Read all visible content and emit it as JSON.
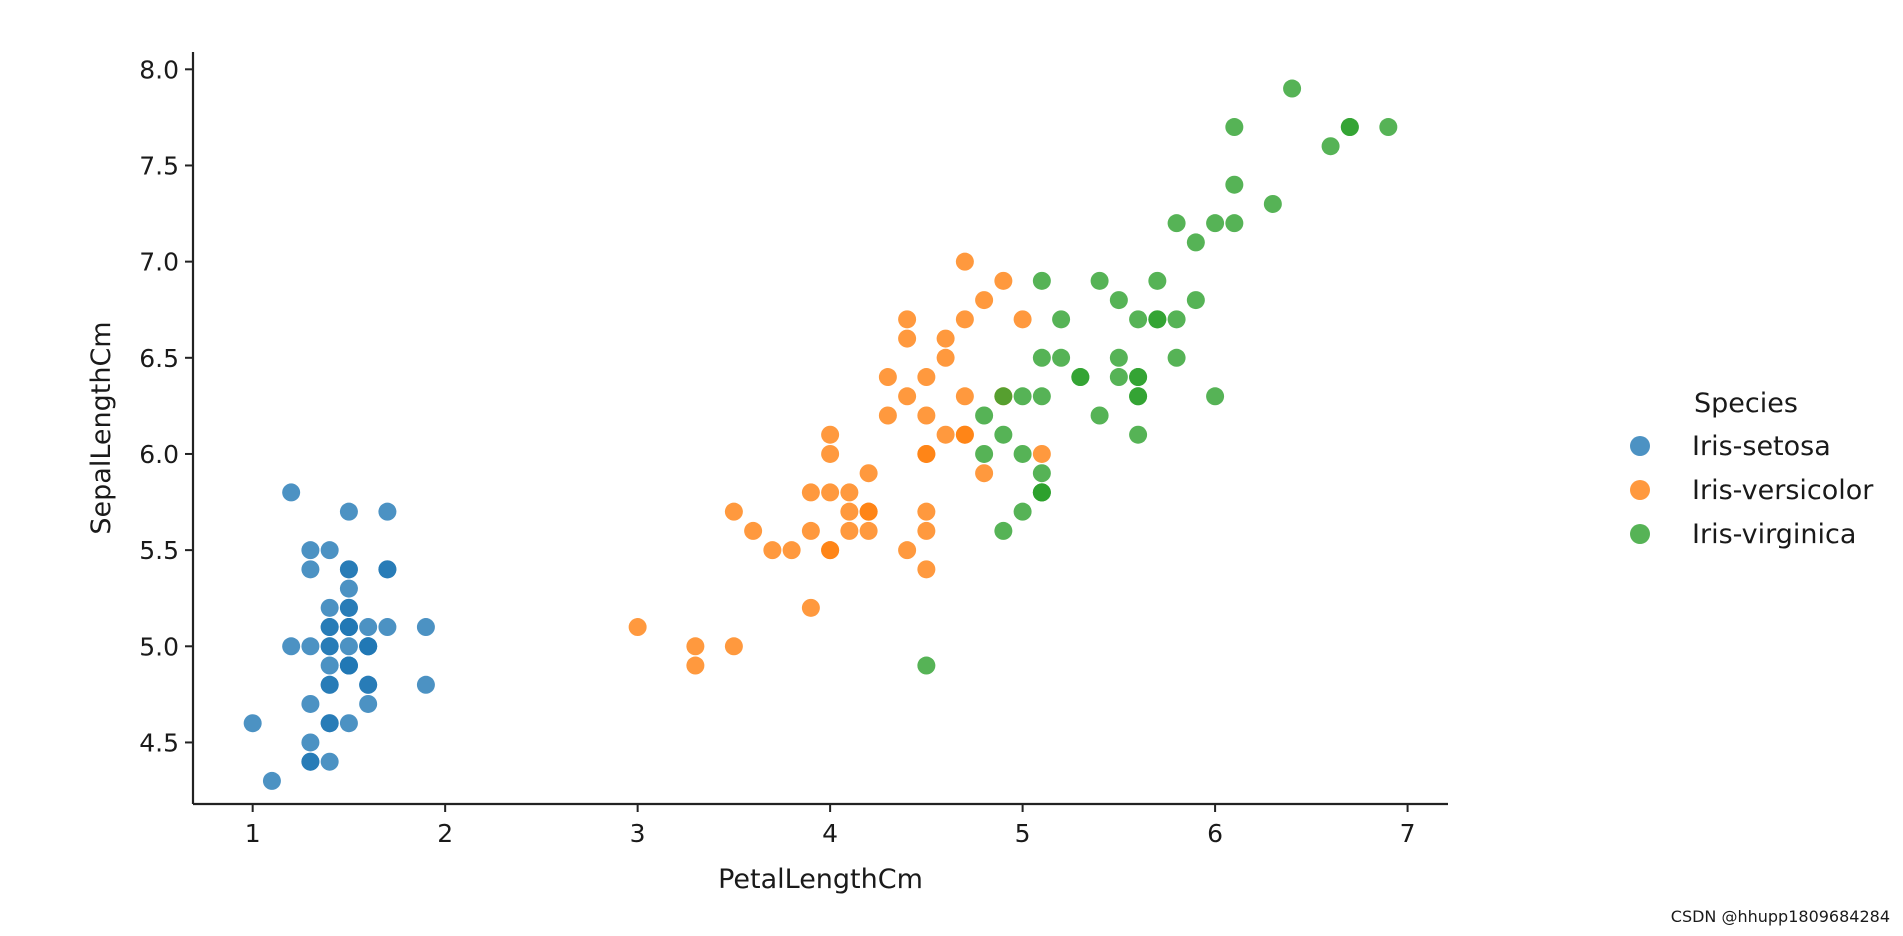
{
  "chart_data": {
    "type": "scatter",
    "xlabel": "PetalLengthCm",
    "ylabel": "SepalLengthCm",
    "xlim": [
      0.69,
      7.21
    ],
    "ylim": [
      4.18,
      8.09
    ],
    "x_ticks": [
      1,
      2,
      3,
      4,
      5,
      6,
      7
    ],
    "x_tick_labels": [
      "1",
      "2",
      "3",
      "4",
      "5",
      "6",
      "7"
    ],
    "y_ticks": [
      4.5,
      5.0,
      5.5,
      6.0,
      6.5,
      7.0,
      7.5,
      8.0
    ],
    "y_tick_labels": [
      "4.5",
      "5.0",
      "5.5",
      "6.0",
      "6.5",
      "7.0",
      "7.5",
      "8.0"
    ],
    "grid": false,
    "legend_title": "Species",
    "legend_position": "outside-right",
    "series": [
      {
        "name": "Iris-setosa",
        "color": "#1f77b4",
        "points": [
          [
            1.4,
            5.1
          ],
          [
            1.4,
            4.9
          ],
          [
            1.3,
            4.7
          ],
          [
            1.5,
            4.6
          ],
          [
            1.4,
            5.0
          ],
          [
            1.7,
            5.4
          ],
          [
            1.4,
            4.6
          ],
          [
            1.5,
            5.0
          ],
          [
            1.4,
            4.4
          ],
          [
            1.5,
            4.9
          ],
          [
            1.5,
            5.4
          ],
          [
            1.6,
            4.8
          ],
          [
            1.4,
            4.8
          ],
          [
            1.1,
            4.3
          ],
          [
            1.2,
            5.8
          ],
          [
            1.5,
            5.7
          ],
          [
            1.3,
            5.4
          ],
          [
            1.4,
            5.1
          ],
          [
            1.7,
            5.7
          ],
          [
            1.5,
            5.1
          ],
          [
            1.7,
            5.4
          ],
          [
            1.5,
            5.1
          ],
          [
            1.0,
            4.6
          ],
          [
            1.7,
            5.1
          ],
          [
            1.9,
            4.8
          ],
          [
            1.6,
            5.0
          ],
          [
            1.6,
            5.0
          ],
          [
            1.5,
            5.2
          ],
          [
            1.4,
            5.2
          ],
          [
            1.6,
            4.7
          ],
          [
            1.6,
            4.8
          ],
          [
            1.5,
            5.4
          ],
          [
            1.5,
            5.2
          ],
          [
            1.4,
            5.5
          ],
          [
            1.5,
            4.9
          ],
          [
            1.2,
            5.0
          ],
          [
            1.3,
            5.5
          ],
          [
            1.5,
            4.9
          ],
          [
            1.3,
            4.4
          ],
          [
            1.5,
            5.1
          ],
          [
            1.3,
            5.0
          ],
          [
            1.3,
            4.5
          ],
          [
            1.3,
            4.4
          ],
          [
            1.6,
            5.0
          ],
          [
            1.9,
            5.1
          ],
          [
            1.4,
            4.8
          ],
          [
            1.6,
            5.1
          ],
          [
            1.4,
            4.6
          ],
          [
            1.5,
            5.3
          ],
          [
            1.4,
            5.0
          ]
        ]
      },
      {
        "name": "Iris-versicolor",
        "color": "#ff7f0e",
        "points": [
          [
            4.7,
            7.0
          ],
          [
            4.5,
            6.4
          ],
          [
            4.9,
            6.9
          ],
          [
            4.0,
            5.5
          ],
          [
            4.6,
            6.5
          ],
          [
            4.5,
            5.7
          ],
          [
            4.7,
            6.3
          ],
          [
            3.3,
            4.9
          ],
          [
            4.6,
            6.6
          ],
          [
            3.9,
            5.2
          ],
          [
            3.5,
            5.0
          ],
          [
            4.2,
            5.9
          ],
          [
            4.0,
            6.0
          ],
          [
            4.7,
            6.1
          ],
          [
            3.6,
            5.6
          ],
          [
            4.4,
            6.7
          ],
          [
            4.5,
            5.6
          ],
          [
            4.1,
            5.8
          ],
          [
            4.5,
            6.2
          ],
          [
            3.9,
            5.6
          ],
          [
            4.8,
            5.9
          ],
          [
            4.0,
            6.1
          ],
          [
            4.9,
            6.3
          ],
          [
            4.7,
            6.1
          ],
          [
            4.3,
            6.4
          ],
          [
            4.4,
            6.6
          ],
          [
            4.8,
            6.8
          ],
          [
            5.0,
            6.7
          ],
          [
            4.5,
            6.0
          ],
          [
            3.5,
            5.7
          ],
          [
            3.8,
            5.5
          ],
          [
            3.7,
            5.5
          ],
          [
            3.9,
            5.8
          ],
          [
            5.1,
            6.0
          ],
          [
            4.5,
            5.4
          ],
          [
            4.5,
            6.0
          ],
          [
            4.7,
            6.7
          ],
          [
            4.4,
            6.3
          ],
          [
            4.1,
            5.6
          ],
          [
            4.0,
            5.5
          ],
          [
            4.4,
            5.5
          ],
          [
            4.6,
            6.1
          ],
          [
            4.0,
            5.8
          ],
          [
            3.3,
            5.0
          ],
          [
            4.2,
            5.6
          ],
          [
            4.2,
            5.7
          ],
          [
            4.2,
            5.7
          ],
          [
            4.3,
            6.2
          ],
          [
            3.0,
            5.1
          ],
          [
            4.1,
            5.7
          ]
        ]
      },
      {
        "name": "Iris-virginica",
        "color": "#2ca02c",
        "points": [
          [
            6.0,
            6.3
          ],
          [
            5.1,
            5.8
          ],
          [
            5.9,
            7.1
          ],
          [
            5.6,
            6.3
          ],
          [
            5.8,
            6.5
          ],
          [
            6.6,
            7.6
          ],
          [
            4.5,
            4.9
          ],
          [
            6.3,
            7.3
          ],
          [
            5.8,
            6.7
          ],
          [
            6.1,
            7.2
          ],
          [
            5.1,
            6.5
          ],
          [
            5.3,
            6.4
          ],
          [
            5.5,
            6.8
          ],
          [
            5.0,
            5.7
          ],
          [
            5.1,
            5.8
          ],
          [
            5.3,
            6.4
          ],
          [
            5.5,
            6.5
          ],
          [
            6.7,
            7.7
          ],
          [
            6.9,
            7.7
          ],
          [
            5.0,
            6.0
          ],
          [
            5.7,
            6.9
          ],
          [
            4.9,
            5.6
          ],
          [
            6.7,
            7.7
          ],
          [
            4.9,
            6.3
          ],
          [
            5.7,
            6.7
          ],
          [
            6.0,
            7.2
          ],
          [
            4.8,
            6.2
          ],
          [
            4.9,
            6.1
          ],
          [
            5.6,
            6.4
          ],
          [
            5.8,
            7.2
          ],
          [
            6.1,
            7.4
          ],
          [
            6.4,
            7.9
          ],
          [
            5.6,
            6.4
          ],
          [
            5.1,
            6.3
          ],
          [
            5.6,
            6.1
          ],
          [
            6.1,
            7.7
          ],
          [
            5.6,
            6.3
          ],
          [
            5.5,
            6.4
          ],
          [
            4.8,
            6.0
          ],
          [
            5.4,
            6.9
          ],
          [
            5.6,
            6.7
          ],
          [
            5.1,
            6.9
          ],
          [
            5.1,
            5.8
          ],
          [
            5.9,
            6.8
          ],
          [
            5.7,
            6.7
          ],
          [
            5.2,
            6.7
          ],
          [
            5.0,
            6.3
          ],
          [
            5.2,
            6.5
          ],
          [
            5.4,
            6.2
          ],
          [
            5.1,
            5.9
          ]
        ]
      }
    ]
  },
  "watermark": "CSDN @hhupp1809684284"
}
